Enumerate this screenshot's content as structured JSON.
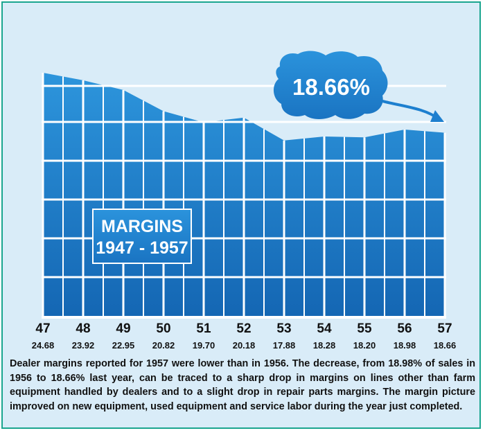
{
  "callout": "18.66%",
  "chart_data": {
    "type": "area",
    "title": "MARGINS",
    "subtitle": "1947 - 1957",
    "categories": [
      "47",
      "48",
      "49",
      "50",
      "51",
      "52",
      "53",
      "54",
      "55",
      "56",
      "57"
    ],
    "value_labels": [
      "24.68",
      "23.92",
      "22.95",
      "20.82",
      "19.70",
      "20.18",
      "17.88",
      "18.28",
      "18.20",
      "18.98",
      "18.66"
    ],
    "values": [
      24.68,
      23.92,
      22.95,
      20.82,
      19.7,
      20.18,
      17.88,
      18.28,
      18.2,
      18.98,
      18.66
    ],
    "ylim": [
      0,
      26
    ],
    "grid": true
  },
  "caption": "Dealer margins reported for 1957 were lower than in 1956. The decrease, from 18.98% of sales in 1956 to 18.66% last year, can be traced to a sharp drop in margins on lines other than farm equipment handled by dealers and to a slight drop in repair parts margins. The margin picture improved on new equipment, used equipment and service labor during the year just completed.",
  "colors": {
    "area_top": "#2d95dc",
    "area_bottom": "#1466b3",
    "frame": "#1aa58f",
    "background": "#d9ecf8"
  }
}
